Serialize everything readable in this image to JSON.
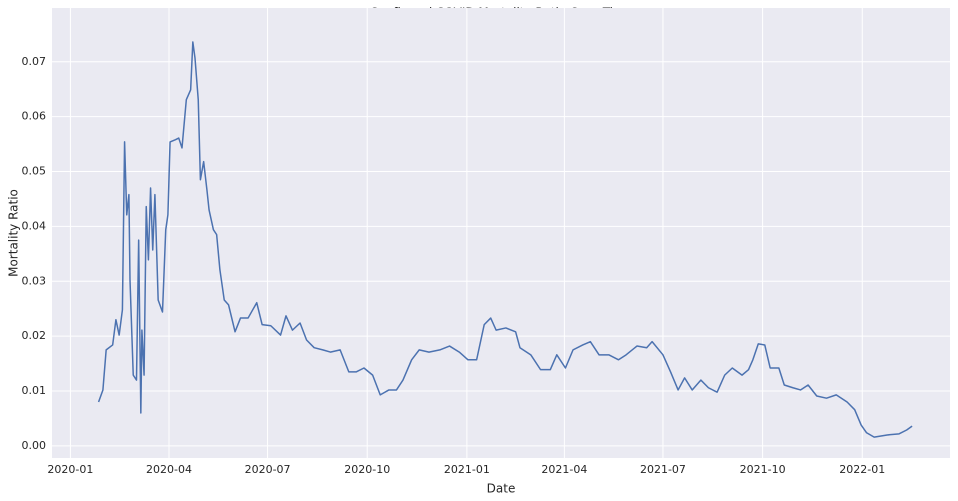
{
  "chart_data": {
    "type": "line",
    "title": "Confirmed COVID Mortality Ratio Over Time",
    "x_label": "Date",
    "y_label": "Mortality Ratio",
    "x": [
      "2020-01-27",
      "2020-01-31",
      "2020-02-03",
      "2020-02-09",
      "2020-02-12",
      "2020-02-15",
      "2020-02-18",
      "2020-02-20",
      "2020-02-22",
      "2020-02-24",
      "2020-02-25",
      "2020-02-28",
      "2020-03-02",
      "2020-03-04",
      "2020-03-06",
      "2020-03-07",
      "2020-03-09",
      "2020-03-11",
      "2020-03-13",
      "2020-03-15",
      "2020-03-17",
      "2020-03-19",
      "2020-03-22",
      "2020-03-26",
      "2020-03-29",
      "2020-03-31",
      "2020-04-02",
      "2020-04-07",
      "2020-04-10",
      "2020-04-13",
      "2020-04-17",
      "2020-04-21",
      "2020-04-23",
      "2020-04-25",
      "2020-04-28",
      "2020-04-30",
      "2020-05-03",
      "2020-05-06",
      "2020-05-08",
      "2020-05-12",
      "2020-05-15",
      "2020-05-18",
      "2020-05-22",
      "2020-05-26",
      "2020-06-01",
      "2020-06-06",
      "2020-06-13",
      "2020-06-21",
      "2020-06-26",
      "2020-07-04",
      "2020-07-13",
      "2020-07-18",
      "2020-07-24",
      "2020-07-31",
      "2020-08-06",
      "2020-08-13",
      "2020-08-21",
      "2020-08-28",
      "2020-09-06",
      "2020-09-14",
      "2020-09-21",
      "2020-09-28",
      "2020-10-06",
      "2020-10-13",
      "2020-10-21",
      "2020-10-28",
      "2020-11-03",
      "2020-11-11",
      "2020-11-18",
      "2020-11-27",
      "2020-12-07",
      "2020-12-16",
      "2020-12-25",
      "2021-01-02",
      "2021-01-10",
      "2021-01-17",
      "2021-01-23",
      "2021-01-28",
      "2021-02-06",
      "2021-02-15",
      "2021-02-19",
      "2021-03-01",
      "2021-03-10",
      "2021-03-19",
      "2021-03-25",
      "2021-04-02",
      "2021-04-09",
      "2021-04-18",
      "2021-04-25",
      "2021-05-03",
      "2021-05-12",
      "2021-05-21",
      "2021-05-28",
      "2021-06-07",
      "2021-06-16",
      "2021-06-21",
      "2021-07-01",
      "2021-07-08",
      "2021-07-15",
      "2021-07-21",
      "2021-07-28",
      "2021-08-05",
      "2021-08-12",
      "2021-08-20",
      "2021-08-27",
      "2021-09-03",
      "2021-09-12",
      "2021-09-18",
      "2021-09-22",
      "2021-09-27",
      "2021-10-03",
      "2021-10-08",
      "2021-10-16",
      "2021-10-21",
      "2021-10-29",
      "2021-11-05",
      "2021-11-12",
      "2021-11-20",
      "2021-11-29",
      "2021-12-08",
      "2021-12-18",
      "2021-12-25",
      "2021-12-31",
      "2022-01-05",
      "2022-01-12",
      "2022-01-24",
      "2022-02-04",
      "2022-02-11",
      "2022-02-16"
    ],
    "series": [
      {
        "name": "Mortality Ratio",
        "color": "#4c72b0",
        "values": [
          0.008,
          0.0102,
          0.0175,
          0.0184,
          0.023,
          0.0202,
          0.0248,
          0.0554,
          0.0421,
          0.0458,
          0.0303,
          0.0129,
          0.012,
          0.0375,
          0.006,
          0.0211,
          0.0129,
          0.0436,
          0.0339,
          0.047,
          0.0357,
          0.0458,
          0.0266,
          0.0244,
          0.0394,
          0.0421,
          0.0554,
          0.0558,
          0.0561,
          0.0543,
          0.0631,
          0.0649,
          0.0736,
          0.0707,
          0.0631,
          0.0485,
          0.0518,
          0.0467,
          0.043,
          0.0394,
          0.0385,
          0.0321,
          0.0266,
          0.0257,
          0.0208,
          0.0233,
          0.0233,
          0.0261,
          0.0221,
          0.0219,
          0.0202,
          0.0237,
          0.0211,
          0.0224,
          0.0193,
          0.0179,
          0.0175,
          0.0171,
          0.0175,
          0.0135,
          0.0135,
          0.0142,
          0.0129,
          0.0093,
          0.0102,
          0.0102,
          0.012,
          0.0157,
          0.0175,
          0.0171,
          0.0175,
          0.0182,
          0.0171,
          0.0157,
          0.0157,
          0.0221,
          0.0233,
          0.0211,
          0.0215,
          0.0208,
          0.0179,
          0.0166,
          0.0139,
          0.0139,
          0.0166,
          0.0142,
          0.0175,
          0.0184,
          0.019,
          0.0166,
          0.0166,
          0.0157,
          0.0166,
          0.0182,
          0.0179,
          0.019,
          0.0166,
          0.0135,
          0.0102,
          0.0124,
          0.0102,
          0.012,
          0.0106,
          0.0098,
          0.0129,
          0.0142,
          0.0129,
          0.0139,
          0.0157,
          0.0186,
          0.0184,
          0.0142,
          0.0142,
          0.0111,
          0.0106,
          0.0102,
          0.0111,
          0.0091,
          0.0087,
          0.0093,
          0.008,
          0.0066,
          0.0038,
          0.0024,
          0.0016,
          0.002,
          0.0022,
          0.0029,
          0.0036
        ]
      }
    ],
    "xlim": [
      "2019-12-15",
      "2022-03-23"
    ],
    "xticks": [
      {
        "value": "2020-01-01",
        "label": "2020-01"
      },
      {
        "value": "2020-04-01",
        "label": "2020-04"
      },
      {
        "value": "2020-07-01",
        "label": "2020-07"
      },
      {
        "value": "2020-10-01",
        "label": "2020-10"
      },
      {
        "value": "2021-01-01",
        "label": "2021-01"
      },
      {
        "value": "2021-04-01",
        "label": "2021-04"
      },
      {
        "value": "2021-07-01",
        "label": "2021-07"
      },
      {
        "value": "2021-10-01",
        "label": "2021-10"
      },
      {
        "value": "2022-01-01",
        "label": "2022-01"
      }
    ],
    "ylim": [
      -0.0022,
      0.0798
    ],
    "yticks": [
      {
        "value": 0,
        "label": "0.00"
      },
      {
        "value": 0.01,
        "label": "0.01"
      },
      {
        "value": 0.02,
        "label": "0.02"
      },
      {
        "value": 0.03,
        "label": "0.03"
      },
      {
        "value": 0.04,
        "label": "0.04"
      },
      {
        "value": 0.05,
        "label": "0.05"
      },
      {
        "value": 0.06,
        "label": "0.06"
      },
      {
        "value": 0.07,
        "label": "0.07"
      }
    ],
    "grid": true
  }
}
